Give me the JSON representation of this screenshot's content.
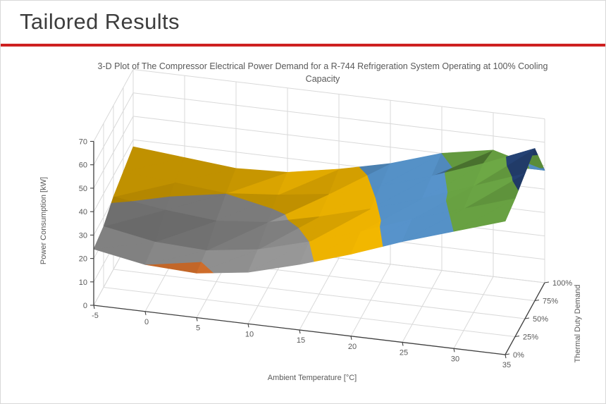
{
  "slide": {
    "title": "Tailored Results",
    "accent_color": "#ce2020"
  },
  "chart_data": {
    "type": "surface",
    "title": "3-D Plot of The Compressor Electrical Power Demand for a R-744 Refrigeration System Operating at 100% Cooling Capacity",
    "x_axis": {
      "label": "Ambient Temperature [°C]",
      "ticks": [
        -5,
        0,
        5,
        10,
        15,
        20,
        25,
        30,
        35
      ],
      "tick_labels": [
        "-5",
        "0",
        "5",
        "10",
        "15",
        "20",
        "25",
        "30",
        "35"
      ]
    },
    "value_axis": {
      "label": "Power Consumption [kW]",
      "min": 0,
      "max": 70,
      "step": 10,
      "ticks": [
        0,
        10,
        20,
        30,
        40,
        50,
        60,
        70
      ],
      "tick_labels": [
        "0",
        "10",
        "20",
        "30",
        "40",
        "50",
        "60",
        "70"
      ]
    },
    "depth_axis": {
      "label": "Thermal Duty Demand",
      "values": [
        0,
        25,
        50,
        75,
        100
      ],
      "ticks": [
        "0%",
        "25%",
        "50%",
        "75%",
        "100%"
      ]
    },
    "bands": [
      {
        "min": 10,
        "max": 20,
        "color": "#ED7D31"
      },
      {
        "min": 20,
        "max": 30,
        "color": "#A5A5A5"
      },
      {
        "min": 30,
        "max": 40,
        "color": "#FFC000"
      },
      {
        "min": 40,
        "max": 50,
        "color": "#5B9BD5"
      },
      {
        "min": 50,
        "max": 60,
        "color": "#70AD47"
      },
      {
        "min": 60,
        "max": 70,
        "color": "#264478"
      }
    ],
    "series": [
      {
        "name": "0%",
        "values": [
          24,
          20,
          19,
          22,
          28,
          35,
          43,
          50,
          57
        ]
      },
      {
        "name": "25%",
        "values": [
          26,
          22,
          21,
          24,
          30,
          37,
          45,
          52,
          59
        ]
      },
      {
        "name": "50%",
        "values": [
          31,
          28,
          26,
          28,
          33,
          39,
          46,
          54,
          62
        ]
      },
      {
        "name": "75%",
        "values": [
          34,
          32,
          30,
          32,
          35,
          41,
          48,
          56,
          65
        ]
      },
      {
        "name": "100%",
        "values": [
          37,
          35,
          33,
          34,
          38,
          43,
          50,
          54,
          48
        ]
      }
    ],
    "colors": {
      "grid": "#d9d9d9",
      "axis": "#404040",
      "text": "#595959"
    },
    "legend": "none",
    "grid": true
  }
}
